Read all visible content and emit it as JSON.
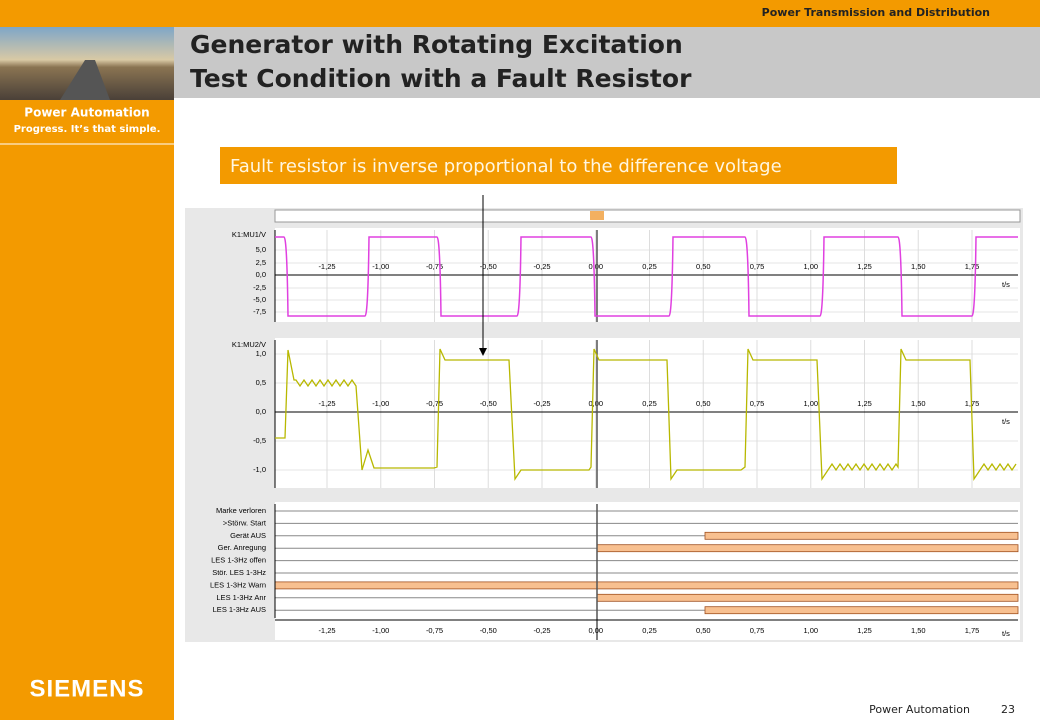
{
  "header": {
    "division": "Power Transmission and Distribution",
    "title_line1": "Generator with Rotating Excitation",
    "title_line2": "Test Condition with a Fault Resistor"
  },
  "sidebar": {
    "brand": "Power Automation",
    "tagline": "Progress. It’s that simple.",
    "logo": "SIEMENS"
  },
  "callout": "Fault resistor is inverse proportional to the difference voltage",
  "oscillogram": {
    "time_ticks": [
      "-1,25",
      "-1,00",
      "-0,75",
      "-0,50",
      "-0,25",
      "0,00",
      "0,25",
      "0,50",
      "0,75",
      "1,00",
      "1,25",
      "1,50",
      "1,75"
    ],
    "time_unit": "t/s",
    "panel1": {
      "channel": "K1:MU1/V",
      "yticks": [
        "5,0",
        "2,5",
        "0,0",
        "-2,5",
        "-5,0",
        "-7,5"
      ]
    },
    "panel2": {
      "channel": "K1:MU2/V",
      "yticks": [
        "1,0",
        "0,5",
        "0,0",
        "-0,5",
        "-1,0"
      ]
    },
    "binary_signals": [
      "Marke verloren",
      ">Störw. Start",
      "Gerät AUS",
      "Ger. Anregung",
      "LES 1-3Hz offen",
      "Stör. LES 1-3Hz",
      "LES 1-3Hz Warn",
      "LES 1-3Hz Anr",
      "LES 1-3Hz AUS"
    ]
  },
  "footer": {
    "label": "Power Automation",
    "page": "23"
  }
}
